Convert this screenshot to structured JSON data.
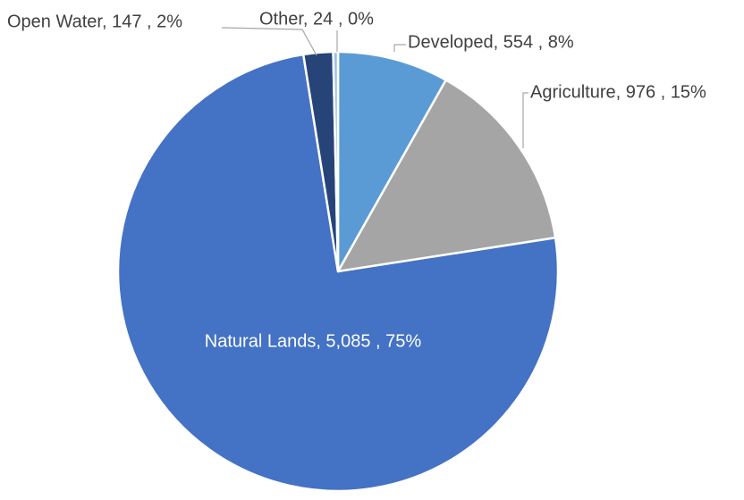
{
  "chart_data": {
    "type": "pie",
    "value_labels": [
      "Developed, 554 , 8%",
      "Agriculture, 976 , 15%",
      "Natural Lands, 5,085 , 75%",
      "Open Water, 147 , 2%",
      "Other, 24 , 0%"
    ],
    "values": [
      554,
      976,
      5085,
      147,
      24
    ],
    "colors": [
      "#5b9bd5",
      "#a5a5a5",
      "#4472c4",
      "#264478",
      "#9dc3e6"
    ]
  }
}
